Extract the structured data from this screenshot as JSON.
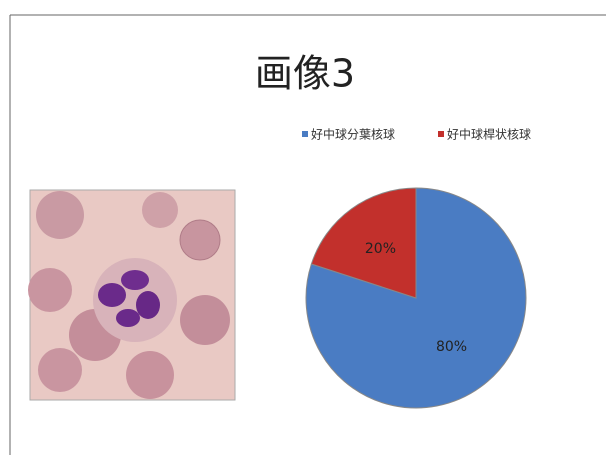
{
  "chart_data": {
    "type": "pie",
    "title": "画像3",
    "categories": [
      "好中球分葉核球",
      "好中球桿状核球"
    ],
    "values": [
      80,
      20
    ],
    "value_labels": [
      "80%",
      "20%"
    ],
    "colors": [
      "#4a7cc3",
      "#c2302c"
    ],
    "legend": "top"
  }
}
